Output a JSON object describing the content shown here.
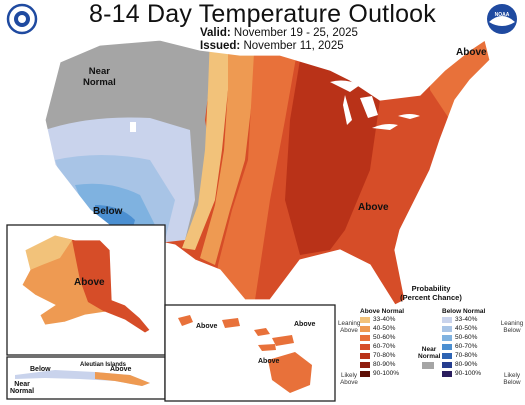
{
  "title": "8-14 Day Temperature Outlook",
  "valid_label": "Valid:",
  "valid_value": "November 19 - 25, 2025",
  "issued_label": "Issued:",
  "issued_value": "November 11, 2025",
  "logos": {
    "left": "noaa-cpc-seal",
    "right": "noaa-logo",
    "left_color": "#1f4aa0",
    "right_color": "#1f4aa0"
  },
  "map_labels": {
    "near_normal_west": "Near",
    "near_normal_west_2": "Normal",
    "below_southwest": "Below",
    "above_northeast": "Above",
    "above_east": "Above",
    "above_alaska": "Above",
    "below_aleutian": "Below",
    "aleutian_islands": "Aleutian Islands",
    "near_normal_aleutian": "Near",
    "near_normal_aleutian_2": "Normal",
    "above_hawaii_1": "Above",
    "above_hawaii_2": "Above",
    "above_hawaii_3": "Above",
    "above_hawaii_4": "Above"
  },
  "legend": {
    "header_1": "Probability",
    "header_2": "(Percent Chance)",
    "above_title": "Above Normal",
    "below_title": "Below Normal",
    "near_label_1": "Near",
    "near_label_2": "Normal",
    "leaning_above": "Leaning Above",
    "likely_above": "Likely Above",
    "leaning_below": "Leaning Below",
    "likely_below": "Likely Below",
    "above_classes": [
      {
        "range": "33-40%",
        "color": "#f2c27a"
      },
      {
        "range": "40-50%",
        "color": "#ee9a52"
      },
      {
        "range": "50-60%",
        "color": "#e8713a"
      },
      {
        "range": "60-70%",
        "color": "#d64d28"
      },
      {
        "range": "70-80%",
        "color": "#b93218"
      },
      {
        "range": "80-90%",
        "color": "#8f1d0e"
      },
      {
        "range": "90-100%",
        "color": "#5e0f06"
      }
    ],
    "below_classes": [
      {
        "range": "33-40%",
        "color": "#c9d3ec"
      },
      {
        "range": "40-50%",
        "color": "#a8c4e6"
      },
      {
        "range": "50-60%",
        "color": "#7fb2e0"
      },
      {
        "range": "60-70%",
        "color": "#4b8fd1"
      },
      {
        "range": "70-80%",
        "color": "#2d63b3"
      },
      {
        "range": "80-90%",
        "color": "#253d8f"
      },
      {
        "range": "90-100%",
        "color": "#2a1d5e"
      }
    ],
    "near_color": "#a5a5a5"
  }
}
